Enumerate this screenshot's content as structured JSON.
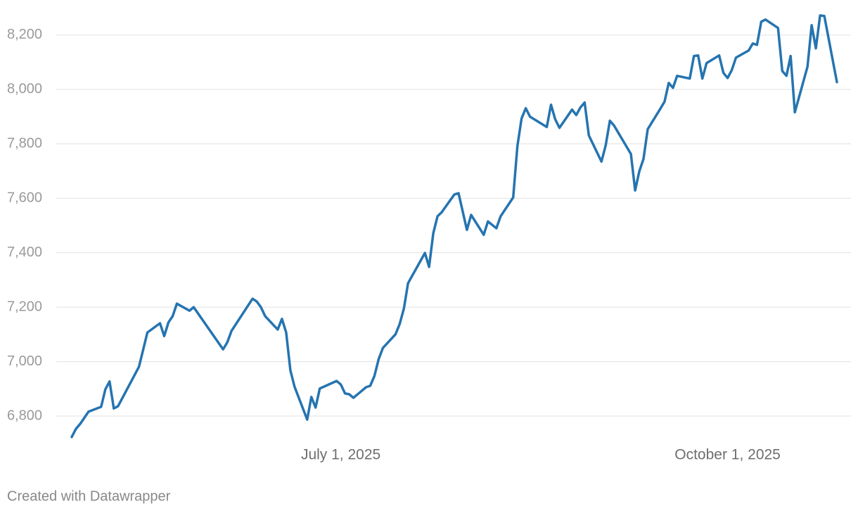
{
  "chart_data": {
    "type": "line",
    "x": [
      "2025-04-28",
      "2025-04-29",
      "2025-04-30",
      "2025-05-02",
      "2025-05-05",
      "2025-05-06",
      "2025-05-07",
      "2025-05-08",
      "2025-05-09",
      "2025-05-14",
      "2025-05-16",
      "2025-05-19",
      "2025-05-20",
      "2025-05-21",
      "2025-05-22",
      "2025-05-23",
      "2025-05-26",
      "2025-05-27",
      "2025-06-03",
      "2025-06-04",
      "2025-06-05",
      "2025-06-10",
      "2025-06-11",
      "2025-06-12",
      "2025-06-13",
      "2025-06-16",
      "2025-06-17",
      "2025-06-18",
      "2025-06-19",
      "2025-06-20",
      "2025-06-23",
      "2025-06-24",
      "2025-06-25",
      "2025-06-26",
      "2025-06-30",
      "2025-07-01",
      "2025-07-02",
      "2025-07-03",
      "2025-07-04",
      "2025-07-07",
      "2025-07-08",
      "2025-07-09",
      "2025-07-10",
      "2025-07-11",
      "2025-07-14",
      "2025-07-15",
      "2025-07-16",
      "2025-07-17",
      "2025-07-21",
      "2025-07-22",
      "2025-07-23",
      "2025-07-24",
      "2025-07-25",
      "2025-07-28",
      "2025-07-29",
      "2025-07-31",
      "2025-08-01",
      "2025-08-04",
      "2025-08-05",
      "2025-08-07",
      "2025-08-08",
      "2025-08-11",
      "2025-08-12",
      "2025-08-13",
      "2025-08-14",
      "2025-08-15",
      "2025-08-19",
      "2025-08-20",
      "2025-08-21",
      "2025-08-22",
      "2025-08-25",
      "2025-08-26",
      "2025-08-27",
      "2025-08-28",
      "2025-08-29",
      "2025-09-01",
      "2025-09-02",
      "2025-09-03",
      "2025-09-04",
      "2025-09-08",
      "2025-09-09",
      "2025-09-10",
      "2025-09-11",
      "2025-09-12",
      "2025-09-15",
      "2025-09-16",
      "2025-09-17",
      "2025-09-18",
      "2025-09-19",
      "2025-09-22",
      "2025-09-23",
      "2025-09-24",
      "2025-09-25",
      "2025-09-26",
      "2025-09-29",
      "2025-09-30",
      "2025-10-01",
      "2025-10-02",
      "2025-10-03",
      "2025-10-06",
      "2025-10-07",
      "2025-10-08",
      "2025-10-09",
      "2025-10-10",
      "2025-10-13",
      "2025-10-14",
      "2025-10-15",
      "2025-10-16",
      "2025-10-17",
      "2025-10-20",
      "2025-10-21",
      "2025-10-22",
      "2025-10-23",
      "2025-10-24",
      "2025-10-27"
    ],
    "series": [
      {
        "color": "#2574b0",
        "values": [
          6723,
          6753,
          6771,
          6816,
          6834,
          6898,
          6927,
          6828,
          6836,
          6981,
          7107,
          7141,
          7094,
          7144,
          7167,
          7213,
          7187,
          7200,
          7045,
          7071,
          7113,
          7231,
          7221,
          7200,
          7167,
          7118,
          7157,
          7107,
          6968,
          6908,
          6787,
          6870,
          6831,
          6901,
          6929,
          6916,
          6883,
          6880,
          6867,
          6906,
          6911,
          6947,
          7009,
          7050,
          7100,
          7138,
          7195,
          7288,
          7399,
          7348,
          7472,
          7534,
          7549,
          7614,
          7619,
          7484,
          7539,
          7466,
          7515,
          7490,
          7534,
          7603,
          7792,
          7893,
          7931,
          7900,
          7862,
          7944,
          7890,
          7859,
          7926,
          7906,
          7934,
          7952,
          7831,
          7735,
          7794,
          7885,
          7867,
          7763,
          7629,
          7699,
          7745,
          7854,
          7929,
          7955,
          8024,
          8006,
          8050,
          8040,
          8123,
          8125,
          8040,
          8097,
          8125,
          8061,
          8042,
          8071,
          8117,
          8143,
          8169,
          8164,
          8249,
          8257,
          8226,
          8068,
          8050,
          8123,
          7916,
          8084,
          8236,
          8151,
          8272,
          8270,
          8027
        ]
      }
    ],
    "xlim": [
      "2025-04-28",
      "2025-10-27"
    ],
    "xticks": [
      {
        "value": "2025-07-01",
        "label": "July 1, 2025"
      },
      {
        "value": "2025-10-01",
        "label": "October 1, 2025"
      }
    ],
    "ylim": [
      6720,
      8290
    ],
    "yticks": [
      {
        "value": 6800,
        "label": "6,800"
      },
      {
        "value": 7000,
        "label": "7,000"
      },
      {
        "value": 7200,
        "label": "7,200"
      },
      {
        "value": 7400,
        "label": "7,400"
      },
      {
        "value": 7600,
        "label": "7,600"
      },
      {
        "value": 7800,
        "label": "7,800"
      },
      {
        "value": 8000,
        "label": "8,000"
      },
      {
        "value": 8200,
        "label": "8,200"
      }
    ],
    "grid": true,
    "source": "Created with Datawrapper"
  }
}
